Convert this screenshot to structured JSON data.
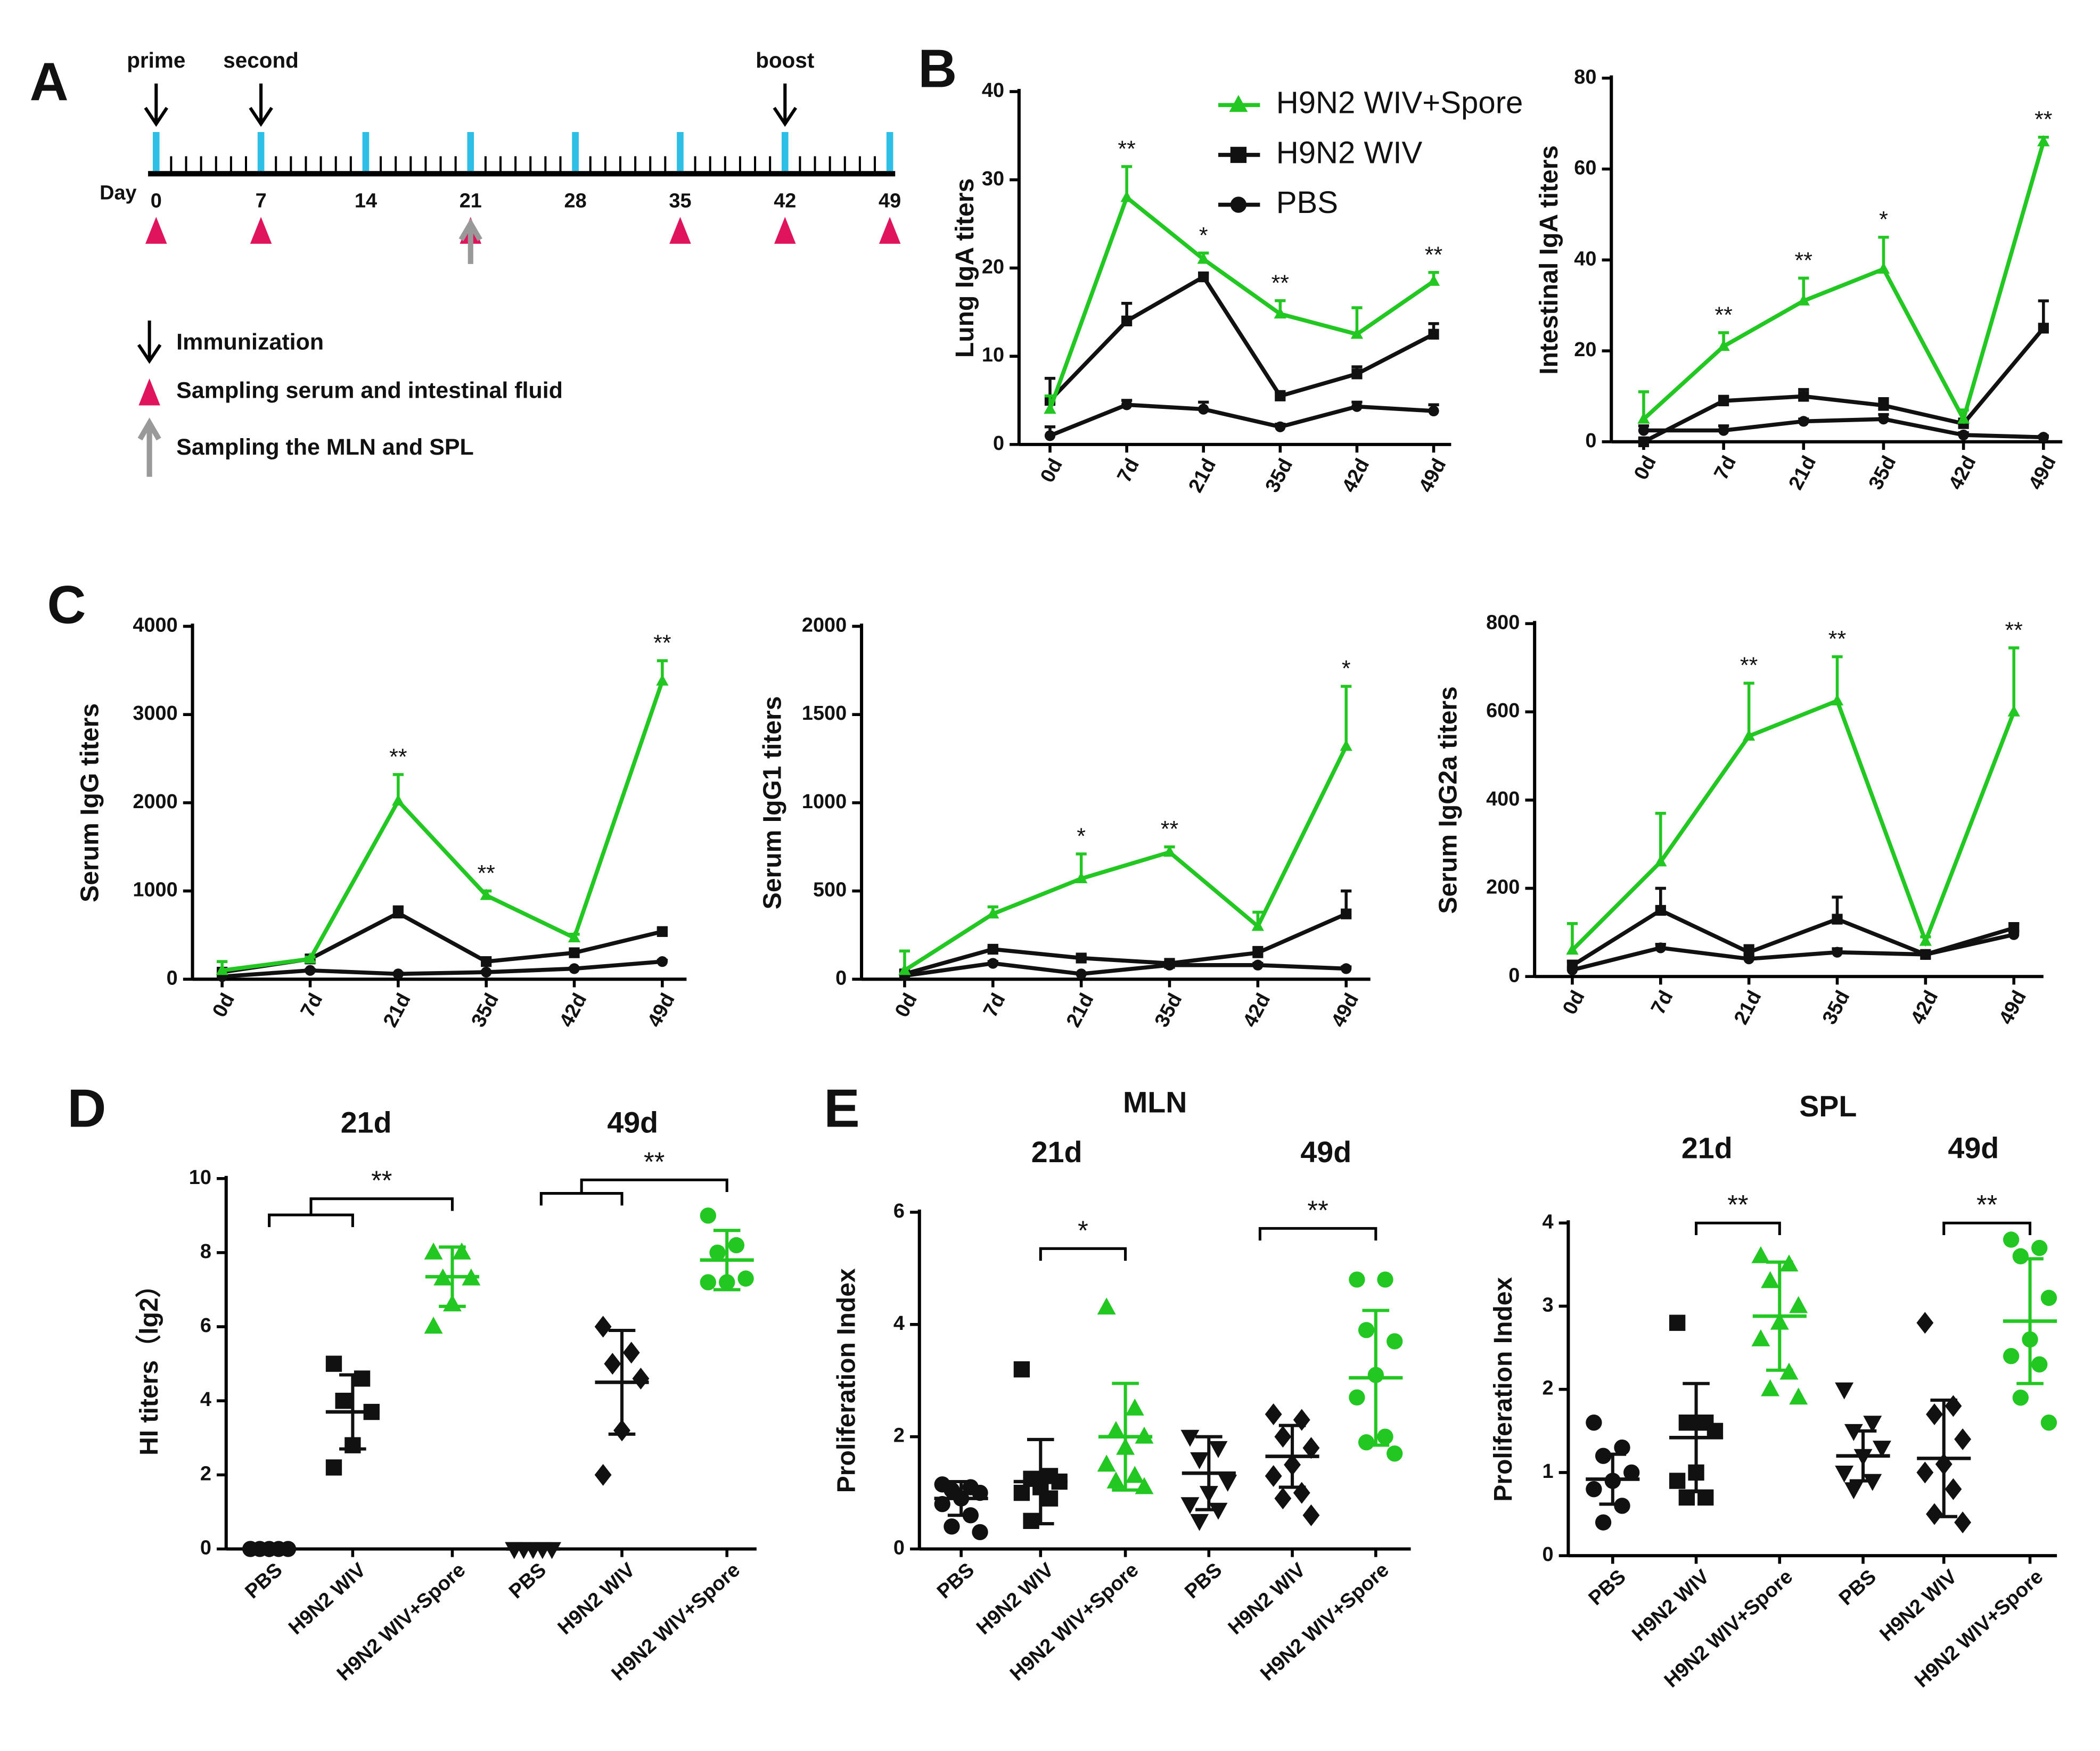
{
  "timeline": {
    "label": "A",
    "day_label": "Day",
    "days": [
      0,
      7,
      14,
      21,
      28,
      35,
      42,
      49
    ],
    "immunizations": [
      {
        "label": "prime",
        "day": 0
      },
      {
        "label": "second",
        "day": 7
      },
      {
        "label": "boost",
        "day": 42
      }
    ],
    "serum_sampling_days": [
      0,
      7,
      21,
      35,
      42,
      49
    ],
    "organ_sampling_days": [
      21
    ],
    "legend": [
      "Immunization",
      "Sampling serum and intestinal fluid",
      "Sampling the MLN and SPL"
    ]
  },
  "chart_data": [
    {
      "type": "line",
      "label": "B",
      "ylabel": "Lung IgA titers",
      "legend": "top-right",
      "categories": [
        "0d",
        "7d",
        "21d",
        "35d",
        "42d",
        "49d"
      ],
      "ylim": [
        0,
        40
      ],
      "yticks": [
        0,
        10,
        20,
        30,
        40
      ],
      "series": [
        {
          "name": "H9N2 WIV+Spore",
          "color": "#22c722",
          "marker": "triangle",
          "values": [
            4,
            28,
            21,
            14.8,
            12.5,
            18.5
          ],
          "errors": [
            1.5,
            3.5,
            0.7,
            1.5,
            3,
            1
          ]
        },
        {
          "name": "H9N2 WIV",
          "color": "#111111",
          "marker": "square",
          "values": [
            5,
            14,
            19,
            5.5,
            8,
            12.5
          ],
          "errors": [
            2.5,
            2,
            0.4,
            0.5,
            0.8,
            1.2
          ]
        },
        {
          "name": "PBS",
          "color": "#111111",
          "marker": "circle",
          "values": [
            1,
            4.5,
            4,
            2,
            4.3,
            3.8
          ],
          "errors": [
            1,
            0.5,
            0.8,
            0.3,
            0.5,
            0.7
          ]
        }
      ],
      "significance": [
        null,
        "**",
        "*",
        "**",
        null,
        "**"
      ]
    },
    {
      "type": "line",
      "ylabel": "Intestinal IgA titers",
      "categories": [
        "0d",
        "7d",
        "21d",
        "35d",
        "42d",
        "49d"
      ],
      "ylim": [
        0,
        80
      ],
      "yticks": [
        0,
        20,
        40,
        60,
        80
      ],
      "series": [
        {
          "color": "#22c722",
          "marker": "triangle",
          "values": [
            5,
            21,
            31,
            38,
            5,
            66
          ],
          "errors": [
            6,
            3,
            5,
            7,
            2,
            1
          ]
        },
        {
          "color": "#111111",
          "marker": "square",
          "values": [
            0,
            9,
            10,
            8,
            4,
            25
          ],
          "errors": [
            0.5,
            1,
            1.5,
            1.5,
            1,
            6
          ]
        },
        {
          "color": "#111111",
          "marker": "circle",
          "values": [
            2.5,
            2.5,
            4.5,
            5,
            1.5,
            1
          ],
          "errors": [
            1,
            1,
            0.5,
            1,
            0.5,
            0.3
          ]
        }
      ],
      "significance": [
        null,
        "**",
        "**",
        "*",
        null,
        "**"
      ]
    },
    {
      "type": "line",
      "label": "C",
      "ylabel": "Serum IgG titers",
      "categories": [
        "0d",
        "7d",
        "21d",
        "35d",
        "42d",
        "49d"
      ],
      "ylim": [
        0,
        4000
      ],
      "yticks": [
        0,
        1000,
        2000,
        3000,
        4000
      ],
      "series": [
        {
          "color": "#22c722",
          "marker": "triangle",
          "values": [
            100,
            230,
            2020,
            950,
            470,
            3380
          ],
          "errors": [
            100,
            20,
            300,
            50,
            40,
            230
          ]
        },
        {
          "color": "#111111",
          "marker": "square",
          "values": [
            80,
            230,
            750,
            200,
            300,
            540
          ],
          "errors": [
            20,
            10,
            70,
            20,
            20,
            30
          ]
        },
        {
          "color": "#111111",
          "marker": "circle",
          "values": [
            30,
            100,
            60,
            80,
            120,
            200
          ],
          "errors": [
            10,
            10,
            10,
            10,
            10,
            15
          ]
        }
      ],
      "significance": [
        null,
        null,
        "**",
        "**",
        null,
        "**"
      ]
    },
    {
      "type": "line",
      "ylabel": "Serum IgG1 titers",
      "categories": [
        "0d",
        "7d",
        "21d",
        "35d",
        "42d",
        "49d"
      ],
      "ylim": [
        0,
        2000
      ],
      "yticks": [
        0,
        500,
        1000,
        1500,
        2000
      ],
      "series": [
        {
          "color": "#22c722",
          "marker": "triangle",
          "values": [
            50,
            370,
            570,
            720,
            300,
            1320
          ],
          "errors": [
            110,
            40,
            140,
            30,
            80,
            340
          ]
        },
        {
          "color": "#111111",
          "marker": "square",
          "values": [
            30,
            170,
            120,
            90,
            150,
            370
          ],
          "errors": [
            20,
            10,
            15,
            10,
            30,
            130
          ]
        },
        {
          "color": "#111111",
          "marker": "circle",
          "values": [
            20,
            90,
            30,
            80,
            80,
            60
          ],
          "errors": [
            5,
            10,
            5,
            10,
            10,
            10
          ]
        }
      ],
      "significance": [
        null,
        null,
        "*",
        "**",
        null,
        "*"
      ]
    },
    {
      "type": "line",
      "ylabel": "Serum IgG2a titers",
      "categories": [
        "0d",
        "7d",
        "21d",
        "35d",
        "42d",
        "49d"
      ],
      "ylim": [
        0,
        800
      ],
      "yticks": [
        0,
        200,
        400,
        600,
        800
      ],
      "series": [
        {
          "color": "#22c722",
          "marker": "triangle",
          "values": [
            60,
            260,
            545,
            625,
            80,
            600
          ],
          "errors": [
            60,
            110,
            120,
            100,
            10,
            145
          ]
        },
        {
          "color": "#111111",
          "marker": "square",
          "values": [
            25,
            150,
            55,
            130,
            50,
            110
          ],
          "errors": [
            10,
            50,
            15,
            50,
            5,
            10
          ]
        },
        {
          "color": "#111111",
          "marker": "circle",
          "values": [
            15,
            65,
            40,
            55,
            50,
            95
          ],
          "errors": [
            5,
            8,
            5,
            8,
            5,
            8
          ]
        }
      ],
      "significance": [
        null,
        null,
        "**",
        "**",
        null,
        "**"
      ]
    },
    {
      "type": "dotplot",
      "label": "D",
      "ylabel": "HI titers（lg2）",
      "group_labels": [
        "21d",
        "49d"
      ],
      "categories": [
        "PBS",
        "H9N2 WIV",
        "H9N2 WIV+Spore",
        "PBS",
        "H9N2 WIV",
        "H9N2 WIV+Spore"
      ],
      "ylim": [
        0,
        10
      ],
      "yticks": [
        0,
        2,
        4,
        6,
        8,
        10
      ],
      "colors": [
        "#111111",
        "#111111",
        "#22c722",
        "#111111",
        "#111111",
        "#22c722"
      ],
      "markers": [
        "circle",
        "square",
        "triangle",
        "triangle-down",
        "diamond",
        "circle"
      ],
      "points": [
        [
          0,
          0,
          0,
          0,
          0,
          0
        ],
        [
          5,
          4.6,
          4,
          3.7,
          2.8,
          2.2
        ],
        [
          8,
          8,
          7.3,
          7.3,
          6.6,
          6
        ],
        [
          0,
          0,
          0,
          0,
          0,
          0
        ],
        [
          6,
          5.3,
          5,
          4.6,
          3.2,
          2
        ],
        [
          9,
          8.2,
          8,
          7.3,
          7.2,
          7.2
        ]
      ],
      "means": [
        0,
        3.7,
        7.35,
        0,
        4.5,
        7.8
      ],
      "sd": [
        0,
        1,
        0.8,
        0,
        1.4,
        0.8
      ],
      "significance": [
        "**",
        "**"
      ]
    },
    {
      "type": "dotplot",
      "label": "E",
      "title": "MLN",
      "ylabel": "Proliferation Index",
      "group_labels": [
        "21d",
        "49d"
      ],
      "categories": [
        "PBS",
        "H9N2 WIV",
        "H9N2 WIV+Spore",
        "PBS",
        "H9N2 WIV",
        "H9N2 WIV+Spore"
      ],
      "ylim": [
        0,
        6
      ],
      "yticks": [
        0,
        2,
        4,
        6
      ],
      "colors": [
        "#111111",
        "#111111",
        "#22c722",
        "#111111",
        "#111111",
        "#22c722"
      ],
      "markers": [
        "circle",
        "square",
        "triangle",
        "triangle-down",
        "diamond",
        "circle"
      ],
      "points": [
        [
          1.15,
          1.1,
          1.05,
          1,
          0.9,
          0.8,
          0.6,
          0.4,
          0.3
        ],
        [
          3.2,
          1.3,
          1.25,
          1.2,
          1.1,
          1,
          0.9,
          0.5
        ],
        [
          4.3,
          2.5,
          2.1,
          2,
          1.8,
          1.5,
          1.3,
          1.2,
          1.1
        ],
        [
          2,
          1.8,
          1.6,
          1.2,
          1,
          0.8,
          0.7,
          0.5
        ],
        [
          2.4,
          2.3,
          2,
          1.8,
          1.5,
          1.3,
          1,
          0.9,
          0.6
        ],
        [
          4.8,
          4.8,
          3.9,
          3.7,
          3.1,
          2.7,
          2,
          1.9,
          1.7
        ]
      ],
      "means": [
        0.9,
        1.2,
        2,
        1.35,
        1.65,
        3.05
      ],
      "sd": [
        0.3,
        0.75,
        0.95,
        0.65,
        0.55,
        1.2
      ],
      "significance": [
        "*",
        "**"
      ]
    },
    {
      "type": "dotplot",
      "title": "SPL",
      "ylabel": "Proliferation Index",
      "group_labels": [
        "21d",
        "49d"
      ],
      "categories": [
        "PBS",
        "H9N2 WIV",
        "H9N2 WIV+Spore",
        "PBS",
        "H9N2 WIV",
        "H9N2 WIV+Spore"
      ],
      "ylim": [
        0,
        4
      ],
      "yticks": [
        0,
        1,
        2,
        3,
        4
      ],
      "colors": [
        "#111111",
        "#111111",
        "#22c722",
        "#111111",
        "#111111",
        "#22c722"
      ],
      "markers": [
        "circle",
        "square",
        "triangle",
        "triangle-down",
        "diamond",
        "circle"
      ],
      "points": [
        [
          1.6,
          1.3,
          1.2,
          1,
          0.9,
          0.8,
          0.6,
          0.4
        ],
        [
          2.8,
          1.6,
          1.6,
          1.5,
          1,
          0.9,
          0.7,
          0.7
        ],
        [
          3.6,
          3.5,
          3.3,
          3,
          2.8,
          2.6,
          2.2,
          2,
          1.9
        ],
        [
          2,
          1.6,
          1.5,
          1.3,
          1.2,
          1,
          0.9,
          0.8
        ],
        [
          2.8,
          1.8,
          1.7,
          1.4,
          1.1,
          1,
          0.8,
          0.5,
          0.4
        ],
        [
          3.8,
          3.7,
          3.6,
          3.1,
          2.6,
          2.4,
          2.3,
          1.9,
          1.6
        ]
      ],
      "means": [
        0.92,
        1.42,
        2.88,
        1.2,
        1.17,
        2.82
      ],
      "sd": [
        0.3,
        0.65,
        0.65,
        0.3,
        0.7,
        0.75
      ],
      "significance": [
        "**",
        "**"
      ]
    }
  ]
}
